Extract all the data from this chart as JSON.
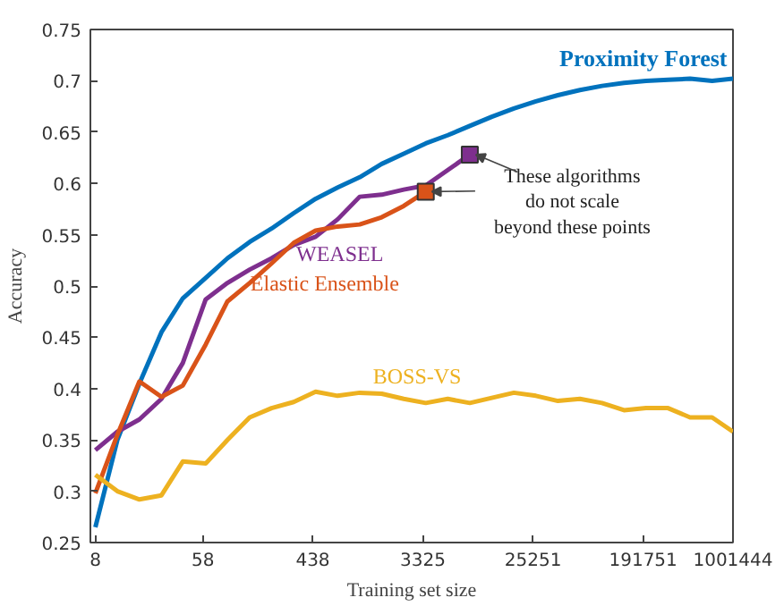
{
  "chart_data": {
    "type": "line",
    "xlabel": "Training set size",
    "ylabel": "Accuracy",
    "log": "x",
    "x": [
      8,
      12,
      18,
      27,
      40,
      61,
      91,
      137,
      205,
      308,
      461,
      692,
      1038,
      1557,
      2335,
      3503,
      5255,
      7882,
      11823,
      17735,
      26602,
      39903,
      59855,
      89782,
      134673,
      202010,
      303015,
      454522,
      681784,
      1001444
    ],
    "xlim": [
      7.3,
      1001444
    ],
    "xticks": [
      8,
      58,
      438,
      3325,
      25251,
      191751,
      1001444
    ],
    "ylim": [
      0.25,
      0.75
    ],
    "yticks": [
      0.25,
      0.3,
      0.35,
      0.4,
      0.45,
      0.5,
      0.55,
      0.6,
      0.65,
      0.7,
      0.75
    ],
    "grid": false,
    "series": [
      {
        "name": "Proximity Forest",
        "color": "#0072bd",
        "values": [
          0.265,
          0.35,
          0.405,
          0.455,
          0.488,
          0.508,
          0.527,
          0.543,
          0.556,
          0.571,
          0.585,
          0.596,
          0.606,
          0.619,
          0.629,
          0.639,
          0.647,
          0.656,
          0.665,
          0.673,
          0.68,
          0.686,
          0.691,
          0.695,
          0.698,
          0.7,
          0.701,
          0.702,
          0.7,
          0.702
        ]
      },
      {
        "name": "WEASEL",
        "color": "#7e2f8e",
        "x": [
          8,
          12,
          18,
          27,
          40,
          61,
          91,
          137,
          205,
          308,
          461,
          692,
          1038,
          1557,
          2335,
          3503,
          5255,
          7882
        ],
        "values": [
          0.34,
          0.358,
          0.37,
          0.39,
          0.425,
          0.487,
          0.503,
          0.516,
          0.527,
          0.54,
          0.548,
          0.565,
          0.587,
          0.589,
          0.594,
          0.598,
          0.613,
          0.628
        ]
      },
      {
        "name": "Elastic Ensemble",
        "color": "#d95319",
        "x": [
          8,
          12,
          18,
          27,
          40,
          61,
          91,
          137,
          205,
          308,
          461,
          692,
          1038,
          1557,
          2335,
          3503
        ],
        "values": [
          0.298,
          0.355,
          0.407,
          0.392,
          0.403,
          0.443,
          0.485,
          0.503,
          0.522,
          0.542,
          0.554,
          0.558,
          0.56,
          0.567,
          0.578,
          0.592
        ]
      },
      {
        "name": "BOSS-VS",
        "color": "#edb120",
        "values": [
          0.316,
          0.3,
          0.292,
          0.296,
          0.329,
          0.327,
          0.35,
          0.372,
          0.381,
          0.387,
          0.397,
          0.393,
          0.396,
          0.395,
          0.39,
          0.386,
          0.39,
          0.386,
          0.391,
          0.396,
          0.393,
          0.388,
          0.39,
          0.386,
          0.379,
          0.381,
          0.381,
          0.372,
          0.372,
          0.358
        ]
      }
    ],
    "annotations": [
      {
        "text": "These algorithms\ndo not scale\nbeyond these points",
        "x": 7882,
        "y": 0.628
      }
    ]
  }
}
